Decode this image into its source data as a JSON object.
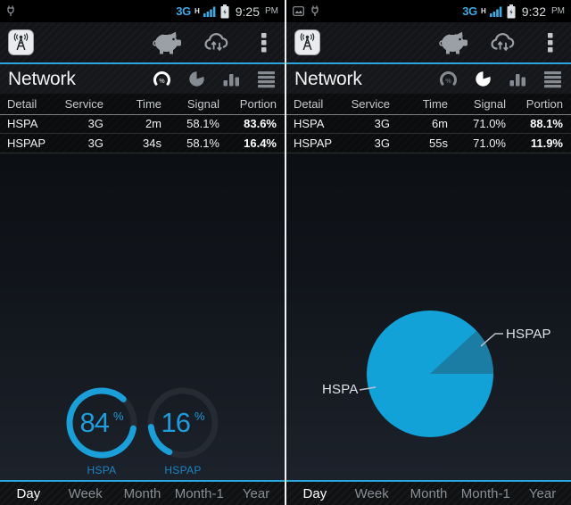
{
  "colors": {
    "accent_blue": "#2aa6de",
    "gauge_cyan": "#1b9fd9",
    "pie_main_cyan": "#12a2d7",
    "pie_slice_dark": "#1b7ca4",
    "active_text": "#ffffff",
    "inactive_text": "#878e95"
  },
  "icons": {
    "status_left": [
      "gallery-icon",
      "power-plug-icon"
    ],
    "status_right": [
      "signal-strength-icon",
      "battery-icon"
    ],
    "appbar": [
      "app-antenna-icon",
      "piggy-bank-icon",
      "cloud-sync-icon",
      "overflow-menu-icon"
    ],
    "view_switcher": [
      "gauge-view-icon",
      "pie-view-icon",
      "bar-view-icon",
      "list-view-icon"
    ]
  },
  "columns": [
    "Detail",
    "Service",
    "Time",
    "Signal",
    "Portion"
  ],
  "tabs": {
    "items": [
      "Day",
      "Week",
      "Month",
      "Month-1",
      "Year"
    ],
    "active": "Day"
  },
  "left": {
    "status": {
      "network": "3G",
      "mode": "H",
      "time": "9:25",
      "meridiem": "PM"
    },
    "title": "Network",
    "active_view": "gauge",
    "rows": [
      [
        "HSPA",
        "3G",
        "2m",
        "58.1%",
        "83.6%"
      ],
      [
        "HSPAP",
        "3G",
        "34s",
        "58.1%",
        "16.4%"
      ]
    ],
    "gauges": [
      {
        "label": "HSPA",
        "value": "84",
        "unit": "%",
        "percent": 84
      },
      {
        "label": "HSPAP",
        "value": "16",
        "unit": "%",
        "percent": 16
      }
    ]
  },
  "right": {
    "status": {
      "network": "3G",
      "mode": "H",
      "time": "9:32",
      "meridiem": "PM"
    },
    "title": "Network",
    "active_view": "pie",
    "rows": [
      [
        "HSPA",
        "3G",
        "6m",
        "71.0%",
        "88.1%"
      ],
      [
        "HSPAP",
        "3G",
        "55s",
        "71.0%",
        "11.9%"
      ]
    ],
    "pie": {
      "slices": [
        {
          "label": "HSPA",
          "percent": 88.1
        },
        {
          "label": "HSPAP",
          "percent": 11.9
        }
      ]
    }
  }
}
